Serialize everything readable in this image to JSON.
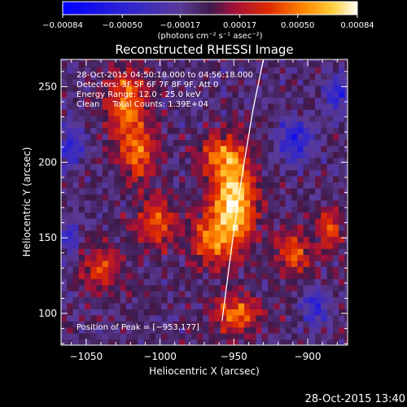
{
  "chart_data": {
    "type": "heatmap",
    "title": "Reconstructed RHESSI Image",
    "xlabel": "Heliocentric X (arcsec)",
    "ylabel": "Heliocentric Y (arcsec)",
    "xlim": [
      -1067,
      -873
    ],
    "ylim": [
      79,
      268
    ],
    "xticks": [
      -1050,
      -1000,
      -950,
      -900
    ],
    "yticks": [
      100,
      150,
      200,
      250
    ],
    "xtick_labels": [
      "−1050",
      "−1000",
      "−950",
      "−900"
    ],
    "ytick_labels": [
      "100",
      "150",
      "200",
      "250"
    ],
    "colorbar": {
      "ticks": [
        -0.00084,
        -0.0005,
        -0.00017,
        0.00017,
        0.0005,
        0.00084
      ],
      "tick_labels": [
        "−0.00084",
        "−0.00050",
        "−0.00017",
        "0.00017",
        "0.00050",
        "0.00084"
      ],
      "units_label": "(photons cm⁻² s⁻¹ asec⁻²)",
      "range": [
        -0.00084,
        0.00084
      ]
    },
    "peak": {
      "x": -953,
      "y": 177
    },
    "limb_curve": [
      [
        -958,
        95
      ],
      [
        -952,
        140
      ],
      [
        -947,
        175
      ],
      [
        -943,
        200
      ],
      [
        -937,
        235
      ],
      [
        -930,
        268
      ]
    ],
    "hotspots": [
      {
        "x": -950,
        "y": 175,
        "amp": 0.00084,
        "sx": 10,
        "sy": 22
      },
      {
        "x": -965,
        "y": 150,
        "amp": 0.0005,
        "sx": 10,
        "sy": 12
      },
      {
        "x": -1022,
        "y": 240,
        "amp": 0.0006,
        "sx": 9,
        "sy": 16
      },
      {
        "x": -1015,
        "y": 205,
        "amp": 0.0005,
        "sx": 9,
        "sy": 12
      },
      {
        "x": -1002,
        "y": 160,
        "amp": 0.00045,
        "sx": 10,
        "sy": 12
      },
      {
        "x": -1040,
        "y": 130,
        "amp": 0.0004,
        "sx": 10,
        "sy": 10
      },
      {
        "x": -948,
        "y": 100,
        "amp": 0.0005,
        "sx": 12,
        "sy": 9
      },
      {
        "x": -910,
        "y": 140,
        "amp": 0.00045,
        "sx": 9,
        "sy": 11
      },
      {
        "x": -885,
        "y": 155,
        "amp": 0.00045,
        "sx": 6,
        "sy": 10
      },
      {
        "x": -960,
        "y": 205,
        "amp": 0.0004,
        "sx": 10,
        "sy": 10
      }
    ],
    "negative_spots": [
      {
        "x": -908,
        "y": 215,
        "amp": -0.0005,
        "sx": 8,
        "sy": 9
      },
      {
        "x": -880,
        "y": 245,
        "amp": -0.0004,
        "sx": 6,
        "sy": 8
      },
      {
        "x": -1060,
        "y": 210,
        "amp": -0.0004,
        "sx": 6,
        "sy": 10
      },
      {
        "x": -895,
        "y": 105,
        "amp": -0.0004,
        "sx": 6,
        "sy": 8
      },
      {
        "x": -1060,
        "y": 150,
        "amp": -0.0003,
        "sx": 5,
        "sy": 8
      }
    ]
  },
  "annotations": {
    "time_range": "28-Oct-2015 04:50:18.000 to 04:56:18.000",
    "detectors": "Detectors: 3F 5F 6F 7F 8F 9F, Att 0",
    "energy_range": "Energy Range: 12.0 - 25.0 keV",
    "clean_counts": "Clean     Total Counts: 1.39E+04",
    "peak_position": "Position of Peak = [−953,177]"
  },
  "footer_time": "28-Oct-2015 13:40",
  "colors": {
    "background": "#000000",
    "axis": "#ffffff",
    "limb": "#ffffff"
  }
}
